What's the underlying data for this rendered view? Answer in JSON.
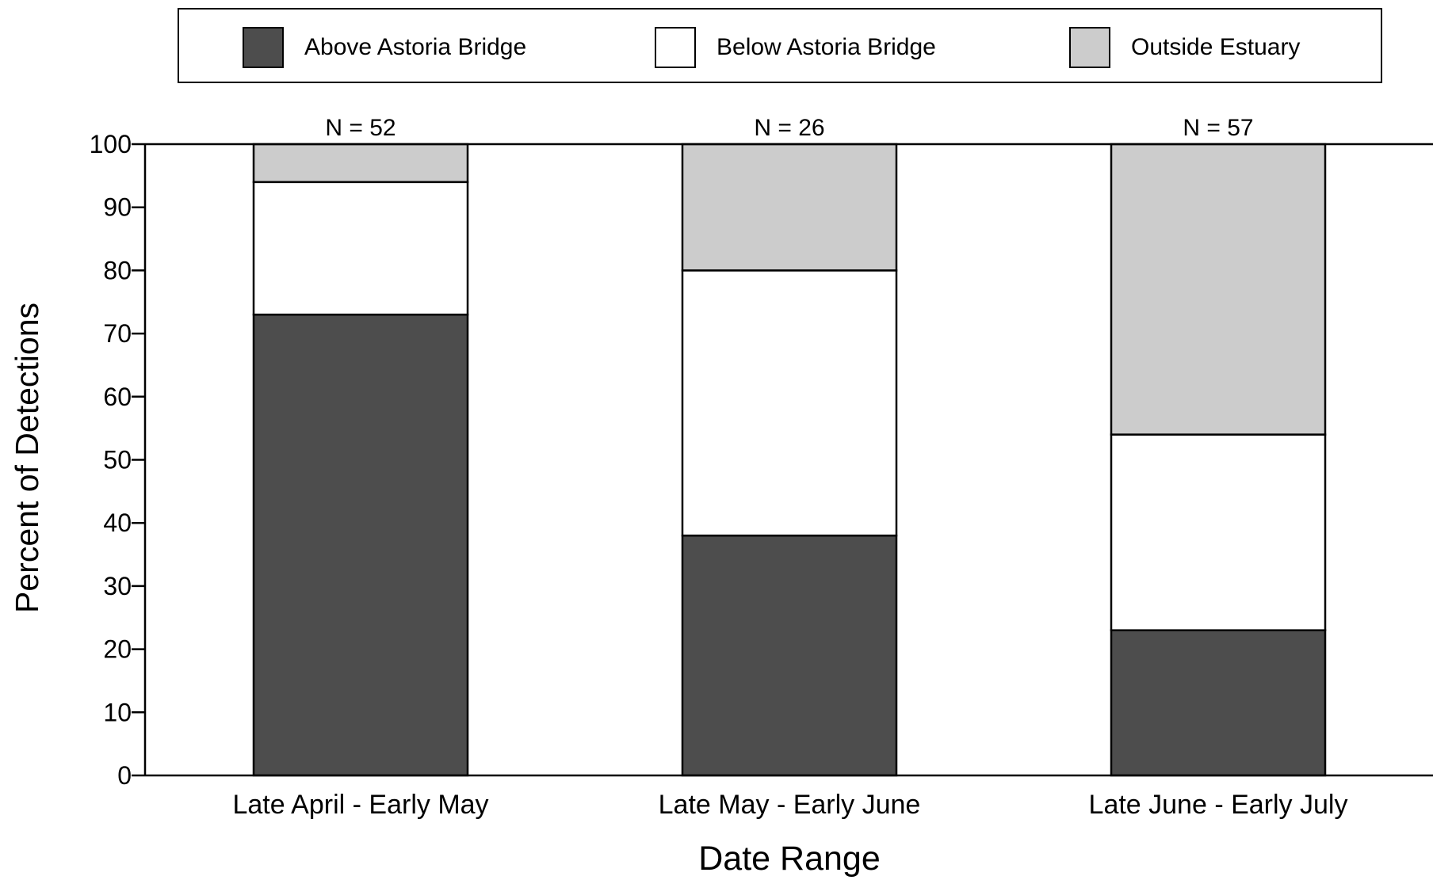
{
  "chart_data": {
    "type": "bar",
    "stacked": true,
    "xlabel": "Date Range",
    "ylabel": "Percent of Detections",
    "ylim": [
      0,
      100
    ],
    "yticks": [
      0,
      10,
      20,
      30,
      40,
      50,
      60,
      70,
      80,
      90,
      100
    ],
    "categories": [
      "Late April - Early May",
      "Late May - Early June",
      "Late June - Early July"
    ],
    "annotations": [
      "N = 52",
      "N = 26",
      "N = 57"
    ],
    "legend": "top",
    "series": [
      {
        "name": "Above Astoria Bridge",
        "color": "#4d4d4d",
        "values": [
          73,
          38,
          23
        ]
      },
      {
        "name": "Below Astoria Bridge",
        "color": "#ffffff",
        "values": [
          21,
          42,
          31
        ]
      },
      {
        "name": "Outside Estuary",
        "color": "#cccccc",
        "values": [
          6,
          20,
          46
        ]
      }
    ]
  }
}
